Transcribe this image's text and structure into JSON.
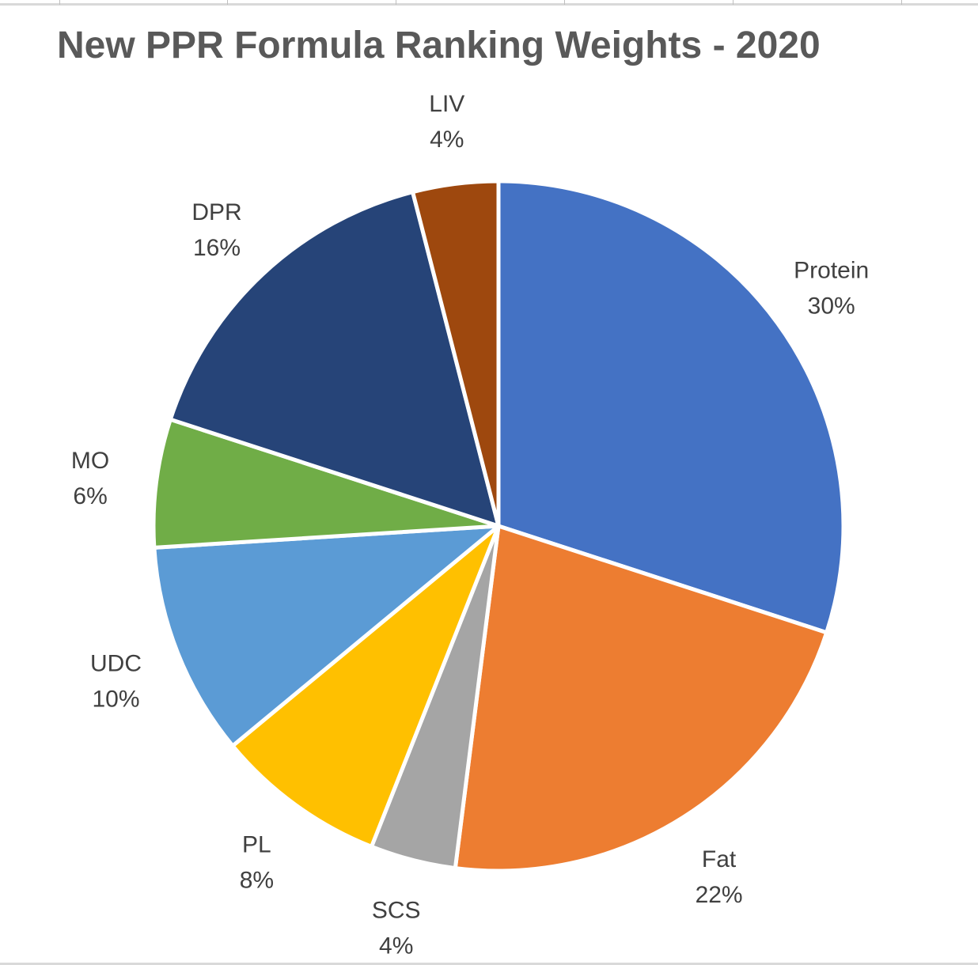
{
  "chart_data": {
    "type": "pie",
    "title": "New PPR Formula Ranking Weights - 2020",
    "slices": [
      {
        "label": "Protein",
        "value": 30,
        "value_label": "30%",
        "color": "#4472c4"
      },
      {
        "label": "Fat",
        "value": 22,
        "value_label": "22%",
        "color": "#ed7d31"
      },
      {
        "label": "SCS",
        "value": 4,
        "value_label": "4%",
        "color": "#a5a5a5"
      },
      {
        "label": "PL",
        "value": 8,
        "value_label": "8%",
        "color": "#ffc000"
      },
      {
        "label": "UDC",
        "value": 10,
        "value_label": "10%",
        "color": "#5b9bd5"
      },
      {
        "label": "MO",
        "value": 6,
        "value_label": "6%",
        "color": "#70ad47"
      },
      {
        "label": "DPR",
        "value": 16,
        "value_label": "16%",
        "color": "#264478"
      },
      {
        "label": "LIV",
        "value": 4,
        "value_label": "4%",
        "color": "#9e480e"
      }
    ],
    "start_angle": "12 o'clock",
    "direction": "clockwise",
    "legend": "none",
    "data_labels": "outside"
  }
}
